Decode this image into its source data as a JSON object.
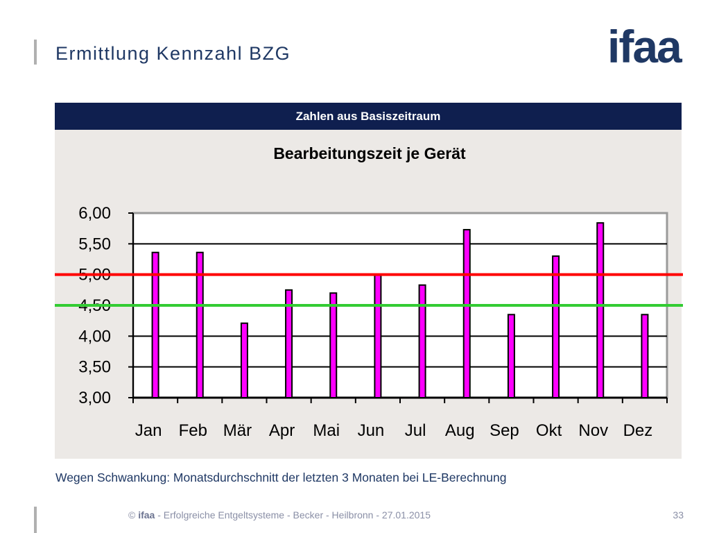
{
  "slide": {
    "title": "Ermittlung Kennzahl BZG",
    "logo_text": "ifaa",
    "header_band": "Zahlen aus Basiszeitraum",
    "caption": "Wegen Schwankung: Monatsdurchschnitt der letzten 3 Monaten bei LE-Berechnung",
    "footer": {
      "copyright": "©",
      "brand": "ifaa",
      "text": " - Erfolgreiche Entgeltsysteme - Becker - Heilbronn - 27.01.2015"
    },
    "page_number": "33"
  },
  "colors": {
    "navy": "#1f3864",
    "band": "#0f1f4f",
    "bar_fill": "#ff00ff",
    "bar_stroke": "#000000",
    "red_line": "#ff0000",
    "green_line": "#33cc33",
    "panel_bg": "#ece9e6"
  },
  "chart_data": {
    "type": "bar",
    "title": "Bearbeitungszeit je Gerät",
    "categories": [
      "Jan",
      "Feb",
      "Mär",
      "Apr",
      "Mai",
      "Jun",
      "Jul",
      "Aug",
      "Sep",
      "Okt",
      "Nov",
      "Dez"
    ],
    "values": [
      5.36,
      5.36,
      4.21,
      4.75,
      4.7,
      5.0,
      4.83,
      5.73,
      4.35,
      5.3,
      5.84,
      4.35
    ],
    "y_ticks": [
      "3,00",
      "3,50",
      "4,00",
      "4,50",
      "5,00",
      "5,50",
      "6,00"
    ],
    "ylim": [
      3,
      6
    ],
    "xlabel": "",
    "ylabel": "",
    "grid": true,
    "reference_lines": [
      {
        "value": 5.0,
        "color": "#ff0000"
      },
      {
        "value": 4.5,
        "color": "#33cc33"
      }
    ]
  }
}
